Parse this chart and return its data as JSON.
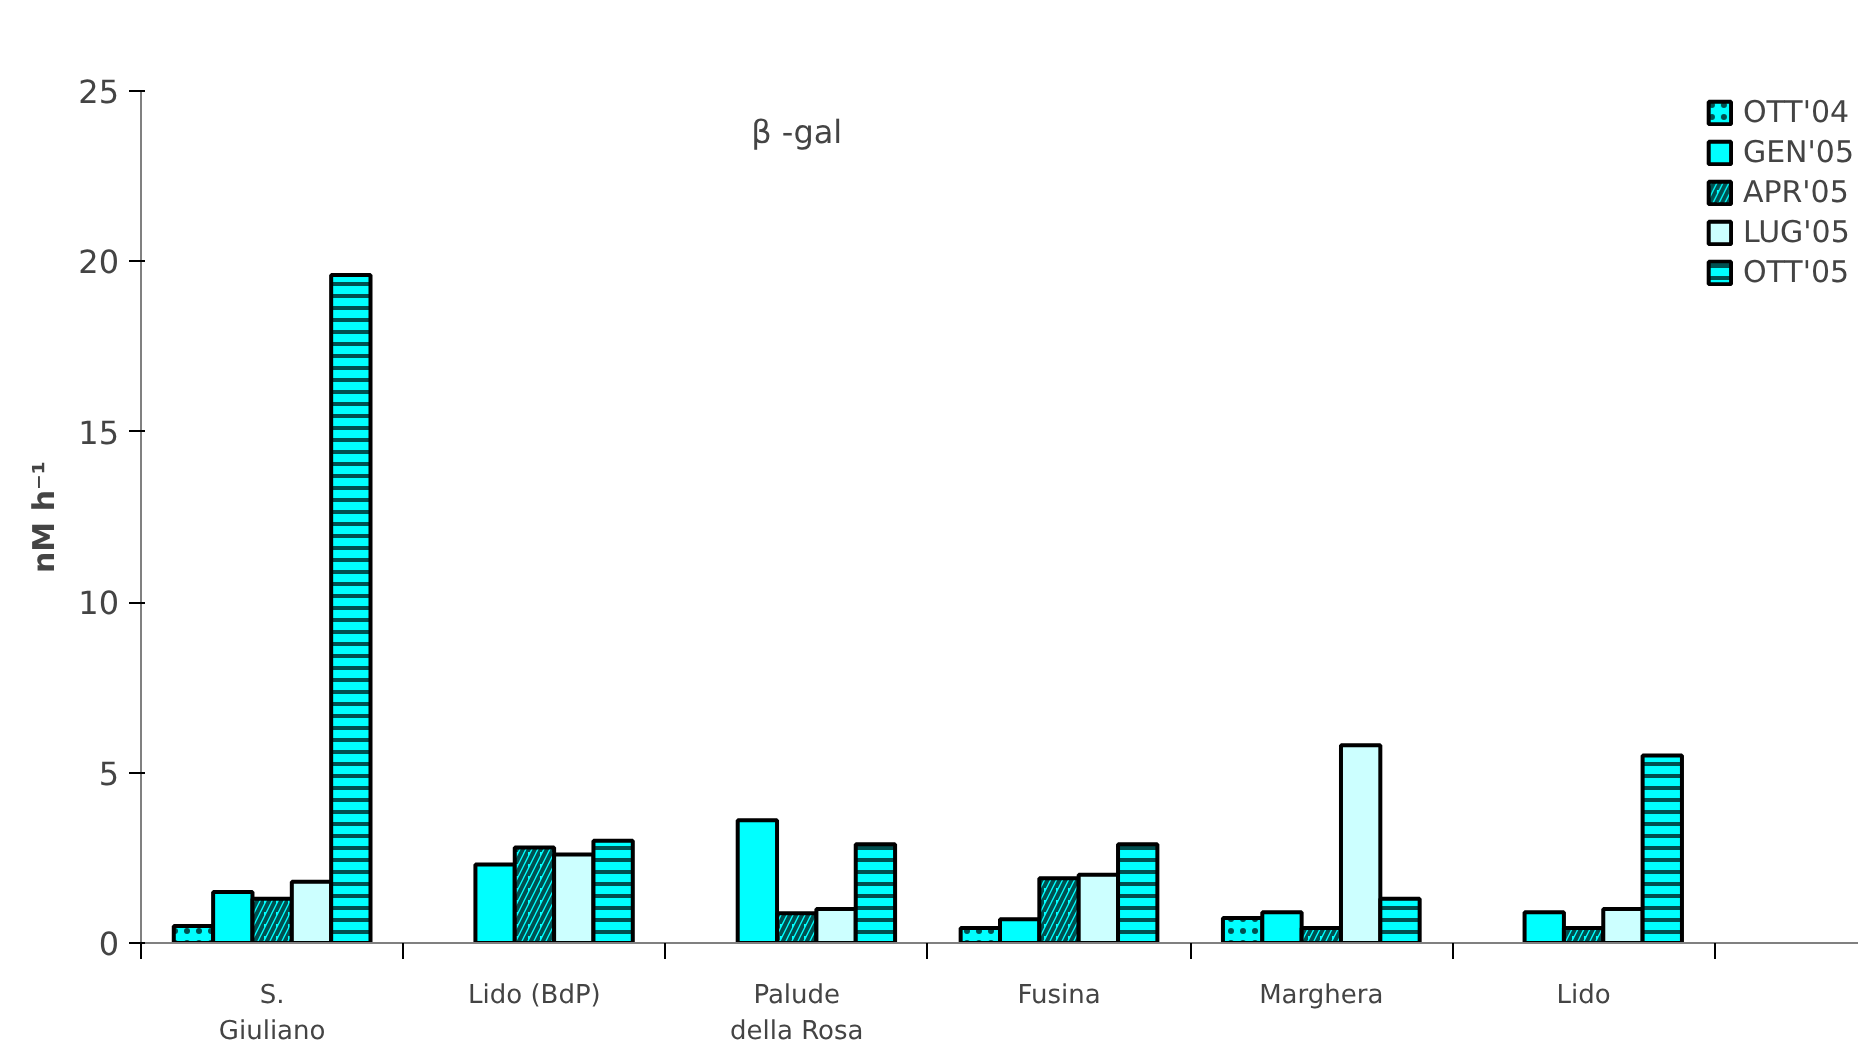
{
  "chart_data": {
    "type": "bar",
    "title": "β -gal",
    "ylabel": "nM h⁻¹",
    "categories": [
      "S.\nGiuliano",
      "Lido (BdP)",
      "Palude\ndella Rosa",
      "Fusina",
      "Marghera",
      "Lido"
    ],
    "series": [
      {
        "name": "OTT'04",
        "color": "#00ffff",
        "values": [
          0.5,
          null,
          null,
          0.44,
          0.73,
          null
        ]
      },
      {
        "name": "GEN'05",
        "color": "#00ffff",
        "values": [
          1.5,
          2.3,
          3.6,
          0.7,
          0.9,
          0.9
        ]
      },
      {
        "name": "APR'05",
        "color": "#00ffff",
        "values": [
          1.3,
          2.8,
          0.87,
          1.9,
          0.44,
          0.44
        ]
      },
      {
        "name": "LUG'05",
        "color": "#ccffff",
        "values": [
          1.8,
          2.6,
          1.0,
          2.0,
          5.8,
          1.0
        ]
      },
      {
        "name": "OTT'05",
        "color": "#00ffff",
        "values": [
          19.6,
          3.0,
          2.9,
          2.9,
          1.3,
          5.5
        ]
      }
    ],
    "ylim": [
      0,
      25
    ],
    "yticks": [
      0,
      5,
      10,
      15,
      20,
      25
    ],
    "grid": false,
    "legend": "top right"
  }
}
